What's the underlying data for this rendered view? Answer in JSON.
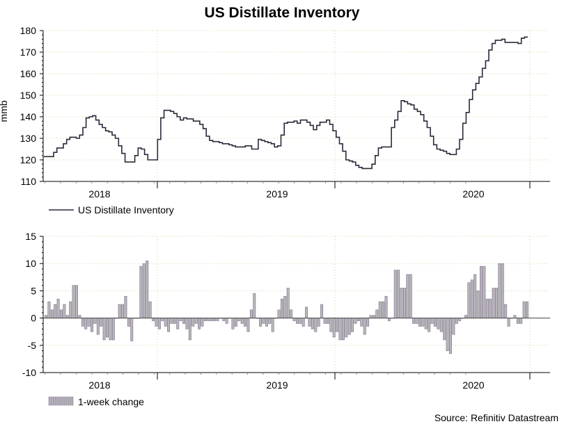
{
  "title": "US Distillate Inventory",
  "source": "Source: Refinitiv Datastream",
  "colors": {
    "line": "#2a2a3a",
    "bar_fill": "#b8b8b8",
    "bar_edge": "#7a6a8a",
    "grid": "#c8d6a0",
    "axis": "#000000"
  },
  "chart_data": [
    {
      "type": "line",
      "ylabel": "mmb",
      "ylim": [
        110,
        180
      ],
      "yticks": [
        "110",
        "120",
        "130",
        "140",
        "150",
        "160",
        "170",
        "180"
      ],
      "xticks": [
        "2018",
        "2019",
        "2020"
      ],
      "grid": true,
      "legend_position": "bottom-left",
      "series": [
        {
          "name": "US Distillate Inventory",
          "x_start": "2017-09",
          "x_end": "2020-05",
          "values": [
            121.5,
            121.5,
            121.5,
            123.5,
            125.5,
            125.5,
            127.5,
            129.5,
            130.5,
            130.5,
            130,
            131.5,
            135,
            139.5,
            140,
            140.5,
            138.5,
            136.5,
            135,
            133.5,
            133,
            131.5,
            130,
            126.5,
            123,
            119,
            119,
            119,
            122,
            125.5,
            125,
            122.5,
            120,
            120,
            120,
            129.5,
            139.5,
            143,
            143,
            142.5,
            141.5,
            140,
            138.5,
            139.5,
            139,
            139,
            138,
            138,
            136.5,
            134.5,
            131,
            129,
            128.5,
            128.5,
            128,
            127.5,
            127.5,
            127,
            126.5,
            126,
            126,
            126,
            126.5,
            126.5,
            125,
            125,
            129.5,
            129,
            128.5,
            128,
            127.5,
            126,
            126.5,
            131.5,
            137,
            137.5,
            137.5,
            138,
            137,
            138.5,
            138.5,
            137.5,
            136,
            134,
            136,
            137.5,
            137.5,
            138.5,
            136.5,
            133.5,
            130.5,
            127.5,
            124,
            120,
            119.5,
            119,
            117.5,
            116.5,
            116,
            116,
            116,
            118,
            122,
            125.5,
            126,
            126,
            126,
            135,
            138.5,
            142.5,
            147.5,
            147,
            146,
            145.5,
            143.5,
            142.5,
            141,
            138,
            135,
            131,
            127,
            125,
            124.5,
            124,
            123,
            122.5,
            122.5,
            125,
            129.5,
            137,
            142,
            148,
            152.5,
            155.5,
            158.5,
            162.5,
            166,
            171,
            174,
            175.5,
            175.5,
            176,
            174.5,
            174.5,
            174.5,
            174.5,
            174,
            176.5,
            177,
            177
          ]
        }
      ]
    },
    {
      "type": "bar",
      "ylim": [
        -10,
        15
      ],
      "yticks": [
        "-10",
        "-5",
        "0",
        "5",
        "10",
        "15"
      ],
      "xticks": [
        "2018",
        "2019",
        "2020"
      ],
      "grid": true,
      "legend_position": "bottom-left",
      "series": [
        {
          "name": "1-week change",
          "x_start": "2017-09",
          "x_end": "2020-05",
          "values": [
            0.5,
            3,
            1.5,
            2.5,
            3.5,
            1.5,
            2.5,
            0.5,
            3,
            6,
            6,
            0.5,
            -1.5,
            -2,
            -1.5,
            -2.5,
            -1,
            -3,
            -1.5,
            -4,
            -3.5,
            -4,
            -4,
            0,
            2.5,
            2.5,
            4,
            -1.5,
            -4.2,
            0,
            0,
            9.5,
            10,
            10.5,
            3,
            -0.5,
            -1.5,
            -2,
            -0.5,
            -1.5,
            -2.5,
            -1,
            -1,
            -2,
            -0.5,
            -1,
            -2,
            -4,
            -1.5,
            -1,
            -2,
            -1.5,
            -0.5,
            -0.5,
            -0.5,
            -0.5,
            -0.5,
            0,
            -0.5,
            -1,
            0,
            -2,
            -1.5,
            -0.5,
            -1,
            -1.5,
            -2.5,
            1.5,
            4.5,
            0,
            -1.5,
            -1,
            -1.5,
            -1,
            -2.5,
            0,
            1.5,
            3.5,
            4,
            5.5,
            1.5,
            -0.5,
            -1,
            -1,
            -1.5,
            2,
            -1.5,
            -2,
            -2.5,
            -1.5,
            2.5,
            -1,
            -1,
            -2.5,
            -3.5,
            -2.5,
            -4,
            -4,
            -3.5,
            -3,
            -2.5,
            -1,
            -0.5,
            -1.5,
            -3,
            -1.5,
            0.5,
            0.5,
            1.5,
            3,
            3,
            4,
            -0.5,
            0,
            8.8,
            8.8,
            5.5,
            5.5,
            8,
            8,
            -1,
            -1,
            -1.5,
            -1.5,
            -2,
            -2.5,
            -1,
            -1.5,
            -2,
            -2.5,
            -4,
            -6,
            -6.5,
            -3,
            -1,
            -0.5,
            0,
            0.5,
            6.5,
            7,
            8,
            5,
            9.5,
            9.5,
            3.5,
            3.5,
            5.5,
            5.5,
            10,
            10,
            2.5,
            -1.5,
            0,
            0.5,
            -1,
            -1,
            3,
            3
          ]
        }
      ]
    }
  ]
}
